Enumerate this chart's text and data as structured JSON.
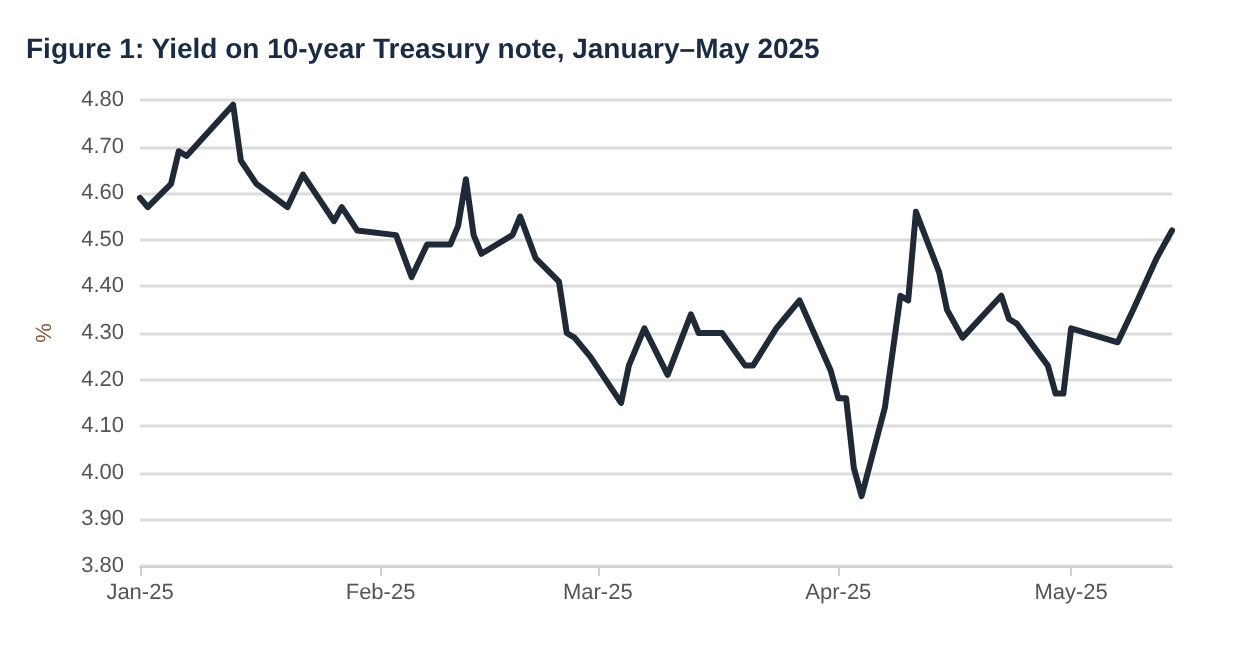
{
  "chart_data": {
    "type": "line",
    "title": "Figure 1: Yield on 10-year Treasury note, January–May 2025",
    "ylabel": "%",
    "x": [
      "2025-01-01",
      "2025-01-02",
      "2025-01-05",
      "2025-01-06",
      "2025-01-07",
      "2025-01-13",
      "2025-01-14",
      "2025-01-16",
      "2025-01-20",
      "2025-01-22",
      "2025-01-26",
      "2025-01-27",
      "2025-01-29",
      "2025-02-03",
      "2025-02-05",
      "2025-02-07",
      "2025-02-10",
      "2025-02-11",
      "2025-02-12",
      "2025-02-13",
      "2025-02-14",
      "2025-02-18",
      "2025-02-19",
      "2025-02-21",
      "2025-02-24",
      "2025-02-25",
      "2025-02-26",
      "2025-02-28",
      "2025-03-02",
      "2025-03-04",
      "2025-03-05",
      "2025-03-07",
      "2025-03-10",
      "2025-03-13",
      "2025-03-14",
      "2025-03-17",
      "2025-03-20",
      "2025-03-21",
      "2025-03-24",
      "2025-03-25",
      "2025-03-27",
      "2025-03-31",
      "2025-04-01",
      "2025-04-02",
      "2025-04-03",
      "2025-04-04",
      "2025-04-07",
      "2025-04-09",
      "2025-04-10",
      "2025-04-11",
      "2025-04-14",
      "2025-04-15",
      "2025-04-17",
      "2025-04-22",
      "2025-04-23",
      "2025-04-24",
      "2025-04-28",
      "2025-04-29",
      "2025-04-30",
      "2025-05-01",
      "2025-05-07",
      "2025-05-09",
      "2025-05-12",
      "2025-05-14"
    ],
    "series": [
      {
        "color": "#1f2a36",
        "values": [
          4.59,
          4.57,
          4.62,
          4.69,
          4.68,
          4.79,
          4.67,
          4.62,
          4.57,
          4.64,
          4.54,
          4.57,
          4.52,
          4.51,
          4.42,
          4.49,
          4.49,
          4.53,
          4.63,
          4.51,
          4.47,
          4.51,
          4.55,
          4.46,
          4.41,
          4.3,
          4.29,
          4.25,
          4.2,
          4.15,
          4.23,
          4.31,
          4.21,
          4.34,
          4.3,
          4.3,
          4.23,
          4.23,
          4.31,
          4.33,
          4.37,
          4.22,
          4.16,
          4.16,
          4.01,
          3.95,
          4.14,
          4.38,
          4.37,
          4.56,
          4.43,
          4.35,
          4.29,
          4.38,
          4.33,
          4.32,
          4.23,
          4.17,
          4.17,
          4.31,
          4.28,
          4.35,
          4.46,
          4.52
        ]
      }
    ],
    "xlim": [
      "2025-01-01",
      "2025-05-14"
    ],
    "xticks": [
      {
        "value": "2025-01-01",
        "label": "Jan-25"
      },
      {
        "value": "2025-02-01",
        "label": "Feb-25"
      },
      {
        "value": "2025-03-01",
        "label": "Mar-25"
      },
      {
        "value": "2025-04-01",
        "label": "Apr-25"
      },
      {
        "value": "2025-05-01",
        "label": "May-25"
      }
    ],
    "ylim": [
      3.8,
      4.8
    ],
    "yticks": [
      {
        "value": 3.8,
        "label": "3.80"
      },
      {
        "value": 3.9,
        "label": "3.90"
      },
      {
        "value": 4.0,
        "label": "4.00"
      },
      {
        "value": 4.1,
        "label": "4.10"
      },
      {
        "value": 4.2,
        "label": "4.20"
      },
      {
        "value": 4.3,
        "label": "4.30"
      },
      {
        "value": 4.4,
        "label": "4.40"
      },
      {
        "value": 4.5,
        "label": "4.50"
      },
      {
        "value": 4.6,
        "label": "4.60"
      },
      {
        "value": 4.7,
        "label": "4.70"
      },
      {
        "value": 4.8,
        "label": "4.80"
      }
    ],
    "grid": "y",
    "marker": "none",
    "line_style": "solid"
  }
}
